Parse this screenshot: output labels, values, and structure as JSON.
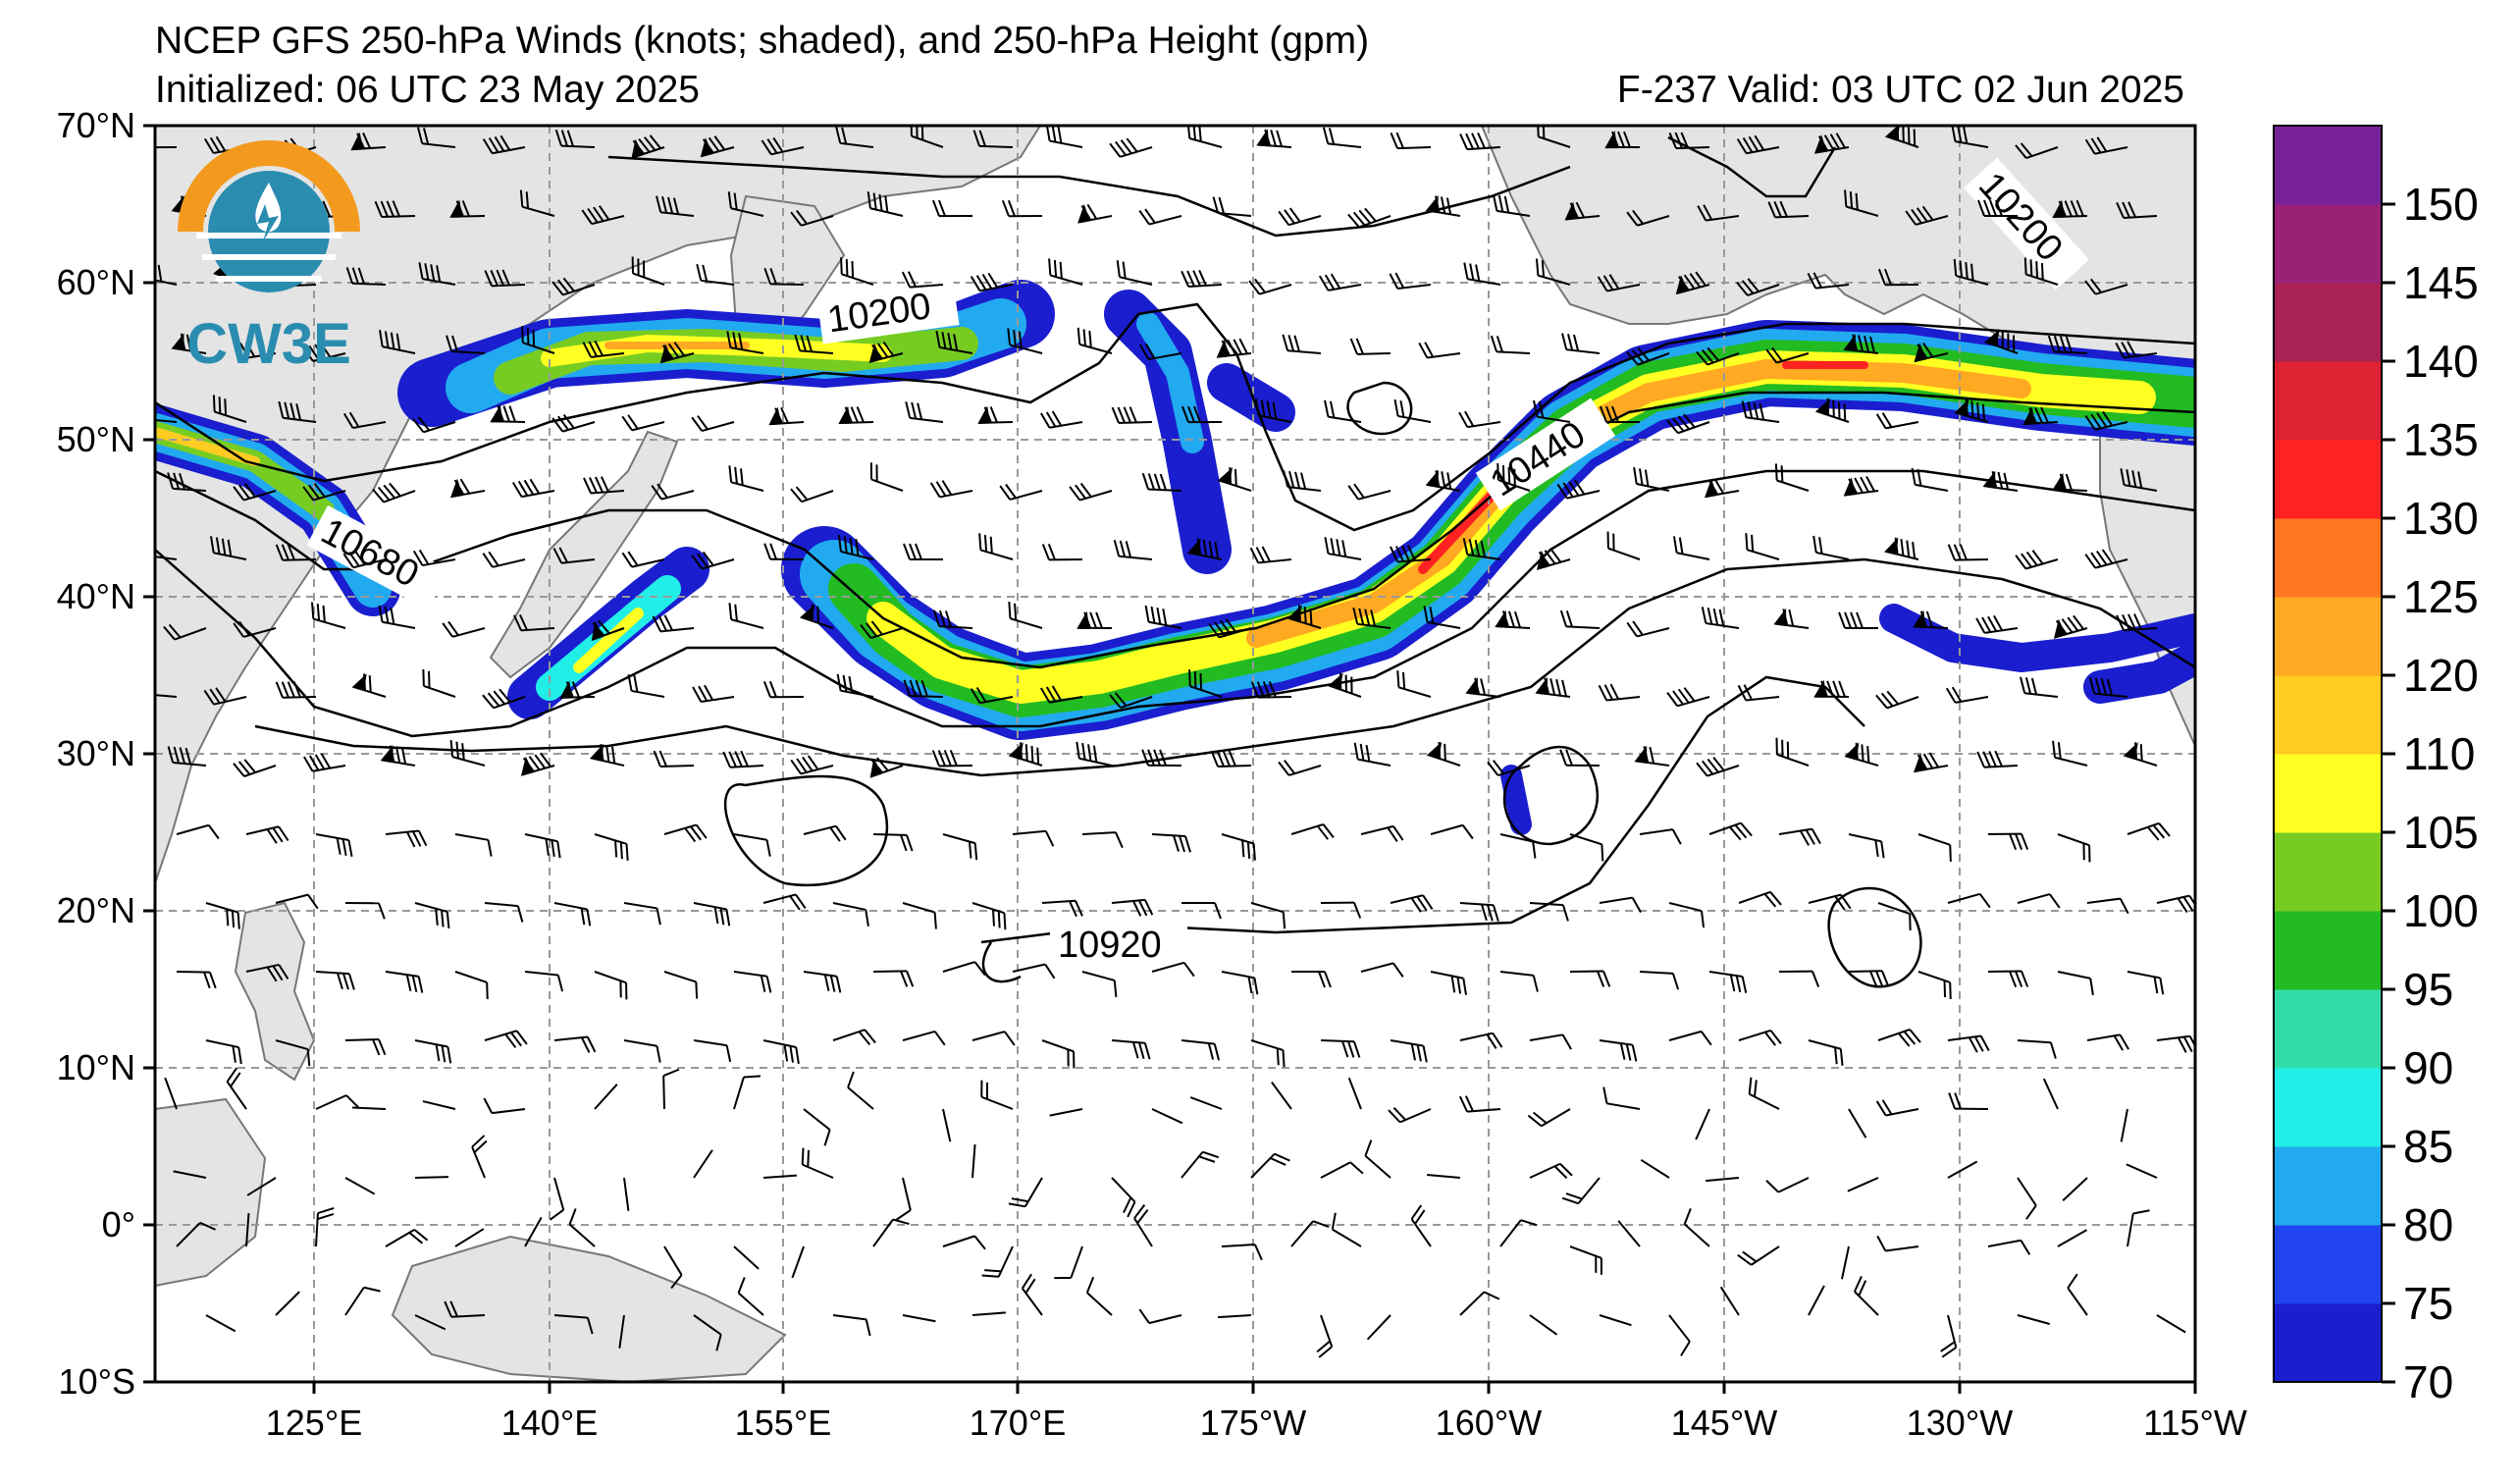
{
  "header": {
    "title": "NCEP GFS 250-hPa Winds (knots; shaded), and 250-hPa Height (gpm)",
    "initialized": "Initialized: 06 UTC 23 May 2025",
    "valid": "F-237  Valid: 03 UTC 02 Jun 2025"
  },
  "logo": {
    "text": "CW3E"
  },
  "axes": {
    "lat_labels": [
      "70°N",
      "60°N",
      "50°N",
      "40°N",
      "30°N",
      "20°N",
      "10°N",
      "0°",
      "10°S"
    ],
    "lon_labels": [
      "125°E",
      "140°E",
      "155°E",
      "170°E",
      "175°W",
      "160°W",
      "145°W",
      "130°W",
      "115°W"
    ]
  },
  "colorbar": {
    "labels": [
      "70",
      "75",
      "80",
      "85",
      "90",
      "95",
      "100",
      "105",
      "110",
      "120",
      "125",
      "130",
      "135",
      "140",
      "145",
      "150"
    ],
    "colors": [
      "#1a1ecf",
      "#2244ee",
      "#22aaf0",
      "#22eee8",
      "#33ddaa",
      "#22bb22",
      "#77cc22",
      "#ffff22",
      "#ffcc22",
      "#ffaa22",
      "#ff7722",
      "#ff2222",
      "#dd2233",
      "#aa2255",
      "#992277",
      "#772299"
    ]
  },
  "height_labels": [
    "10200",
    "10200",
    "10440",
    "10680",
    "10920"
  ],
  "map": {
    "land_color": "#e4e4e4",
    "grid_color": "#999999"
  }
}
